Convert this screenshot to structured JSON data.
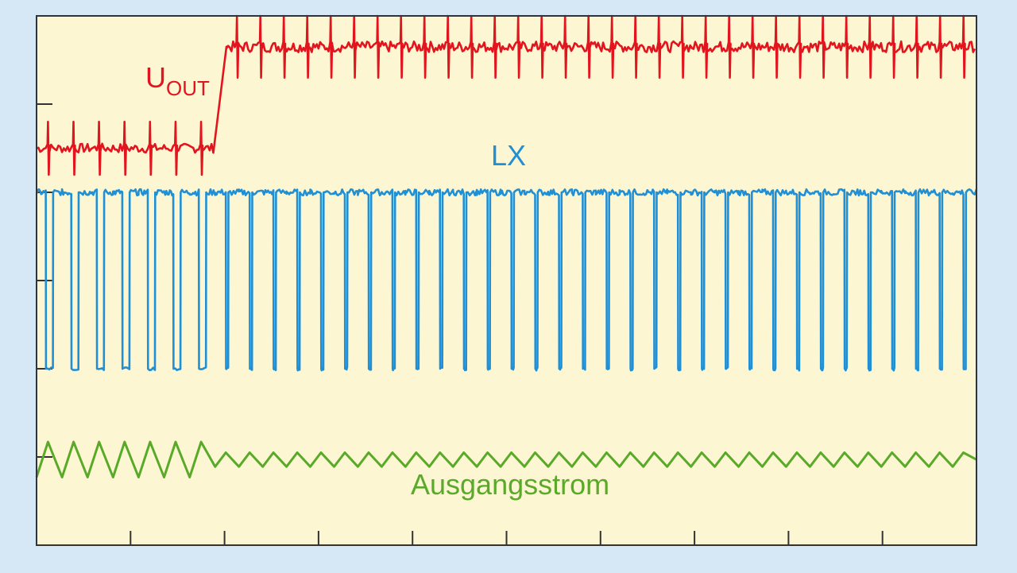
{
  "colors": {
    "background": "#d6e8f5",
    "plot_area": "#fdf6d2",
    "frame": "#333333",
    "uout": "#e2141e",
    "lx": "#1f8fd6",
    "current": "#5aaa2a"
  },
  "chart_data": {
    "type": "line",
    "title": "",
    "xlabel": "",
    "ylabel": "",
    "grid": false,
    "legend": "none",
    "x_divisions": 10,
    "x_range": [
      0,
      10
    ],
    "y_range": [
      0,
      6
    ],
    "y_ticks": [
      1,
      2,
      3,
      4,
      5
    ],
    "transition_x": 1.9,
    "series": [
      {
        "name": "U",
        "name_sub": "OUT",
        "kind": "step-with-ripple",
        "level_before": 4.5,
        "level_after": 5.65,
        "ripple_before": 0.3,
        "ripple_after": 0.35,
        "spikes_before": 7,
        "spikes_after": 32
      },
      {
        "name": "LX",
        "kind": "square-wave",
        "high": 4.0,
        "low": 2.0,
        "pulses_before": 7,
        "pulses_after": 32,
        "duty_before": 0.28,
        "duty_after": 0.1
      },
      {
        "name": "Ausgangsstrom",
        "kind": "triangle-wave",
        "center": 0.97,
        "amplitude_before": 0.2,
        "amplitude_after": 0.08,
        "cycles_before": 7,
        "cycles_after": 32
      }
    ]
  }
}
